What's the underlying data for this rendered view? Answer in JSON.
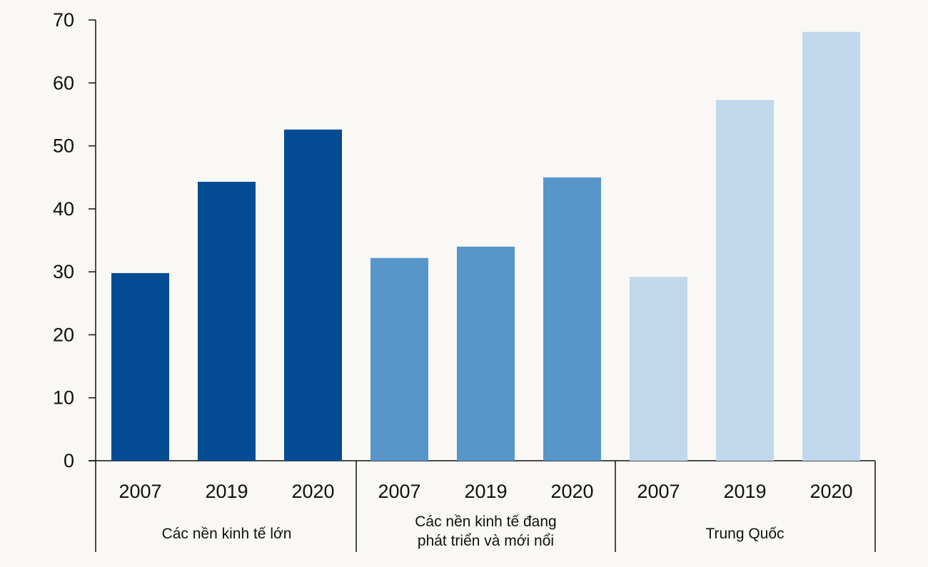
{
  "chart_data": {
    "type": "bar",
    "title": "",
    "xlabel": "",
    "ylabel": "",
    "ylim": [
      0,
      70
    ],
    "yticks": [
      "0",
      "10",
      "20",
      "30",
      "40",
      "50",
      "60",
      "70"
    ],
    "grid": false,
    "legend": "none",
    "groups": [
      {
        "label_lines": [
          "Các nền kinh tế lớn"
        ],
        "color": "#034c94",
        "categories": [
          "2007",
          "2019",
          "2020"
        ],
        "values": [
          29.8,
          44.3,
          52.6
        ]
      },
      {
        "label_lines": [
          "Các nền kinh tế đang",
          "phát triển và mới nổi"
        ],
        "color": "#5896c9",
        "categories": [
          "2007",
          "2019",
          "2020"
        ],
        "values": [
          32.2,
          34.0,
          45.0
        ]
      },
      {
        "label_lines": [
          "Trung Quốc"
        ],
        "color": "#c2d8ec",
        "categories": [
          "2007",
          "2019",
          "2020"
        ],
        "values": [
          29.2,
          57.3,
          68.1
        ]
      }
    ]
  }
}
